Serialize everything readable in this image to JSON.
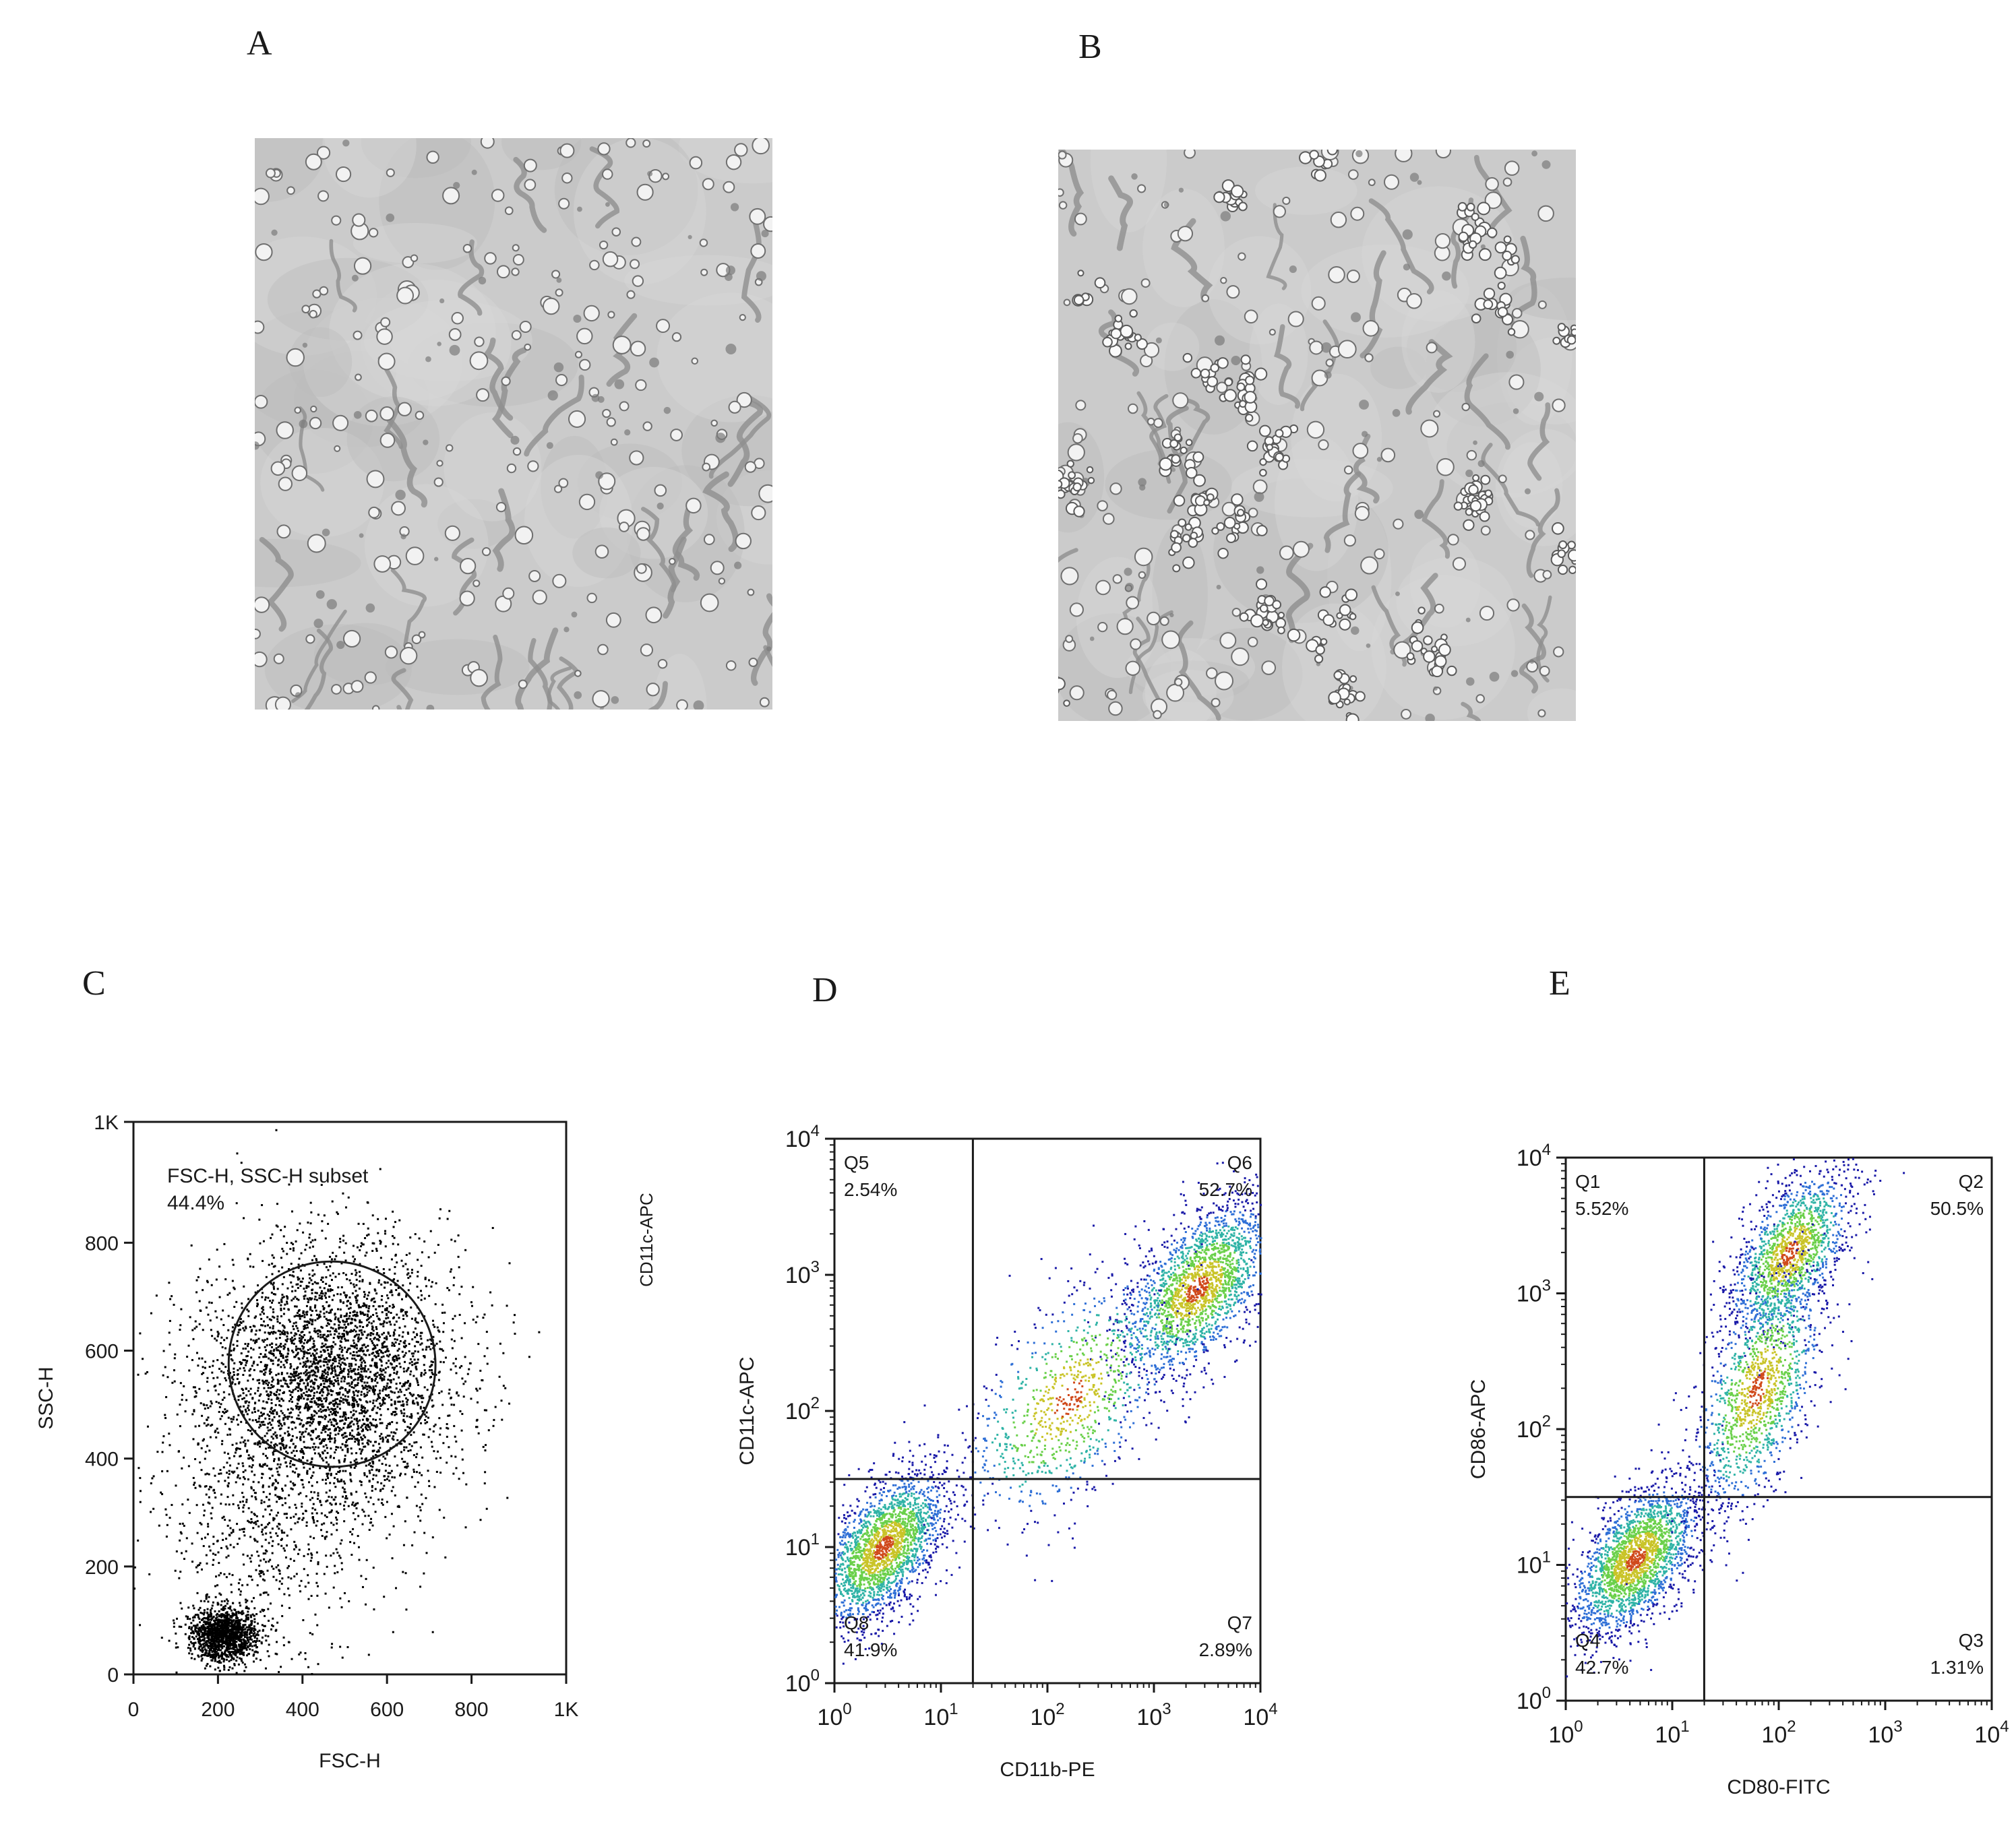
{
  "panels": {
    "A": {
      "letter": "A"
    },
    "B": {
      "letter": "B"
    },
    "C": {
      "letter": "C"
    },
    "D": {
      "letter": "D"
    },
    "E": {
      "letter": "E"
    }
  },
  "chart_data": [
    {
      "id": "C",
      "type": "scatter",
      "xlabel": "FSC-H",
      "ylabel": "SSC-H",
      "scale": "linear",
      "xlim": [
        0,
        1024
      ],
      "ylim": [
        0,
        1024
      ],
      "x_ticks": [
        "0",
        "200",
        "400",
        "600",
        "800",
        "1K"
      ],
      "x_tick_values": [
        0,
        200,
        400,
        600,
        800,
        1024
      ],
      "y_ticks": [
        "0",
        "200",
        "400",
        "600",
        "800",
        "1K"
      ],
      "y_tick_values": [
        0,
        200,
        400,
        600,
        800,
        1024
      ],
      "gate": {
        "type": "ellipse",
        "center": [
          470,
          575
        ],
        "rx": 245,
        "ry": 190
      },
      "gate_label": "FSC-H, SSC-H subset",
      "gate_value": "44.4%",
      "clusters": [
        {
          "center": [
            470,
            560
          ],
          "spread": [
            150,
            120
          ],
          "count": 3500
        },
        {
          "center": [
            215,
            75
          ],
          "spread": [
            40,
            25
          ],
          "count": 1400
        },
        {
          "center": [
            320,
            300
          ],
          "spread": [
            140,
            130
          ],
          "count": 800
        }
      ],
      "color": "#000000"
    },
    {
      "id": "D",
      "type": "scatter",
      "xlabel": "CD11b-PE",
      "ylabel": "CD11c-APC",
      "ylabel_outer": "CD11c-APC",
      "scale": "log",
      "xlim": [
        0,
        4
      ],
      "ylim": [
        0,
        4
      ],
      "x_ticks": [
        "10^0",
        "10^1",
        "10^2",
        "10^3",
        "10^4"
      ],
      "y_ticks": [
        "10^0",
        "10^1",
        "10^2",
        "10^3",
        "10^4"
      ],
      "quadrant_threshold": [
        1.3,
        1.5
      ],
      "quadrants": [
        {
          "name": "Q5",
          "value": "2.54%",
          "position": "top-left"
        },
        {
          "name": "Q6",
          "value": "52.7%",
          "position": "top-right"
        },
        {
          "name": "Q7",
          "value": "2.89%",
          "position": "bottom-right"
        },
        {
          "name": "Q8",
          "value": "41.9%",
          "position": "bottom-left"
        }
      ],
      "clusters": [
        {
          "center": [
            0.45,
            1.0
          ],
          "spread": [
            0.3,
            0.28
          ],
          "count": 2200
        },
        {
          "center": [
            3.4,
            2.9
          ],
          "spread": [
            0.35,
            0.32
          ],
          "count": 2000
        },
        {
          "center": [
            2.2,
            2.1
          ],
          "spread": [
            0.5,
            0.45
          ],
          "count": 900
        }
      ],
      "density_colors": [
        "#1a1aa8",
        "#2e6fd6",
        "#2fb3a6",
        "#6ad04a",
        "#c9c428",
        "#d04a1c"
      ]
    },
    {
      "id": "E",
      "type": "scatter",
      "xlabel": "CD80-FITC",
      "ylabel": "CD86-APC",
      "scale": "log",
      "xlim": [
        0,
        4
      ],
      "ylim": [
        0,
        4
      ],
      "x_ticks": [
        "10^0",
        "10^1",
        "10^2",
        "10^3",
        "10^4"
      ],
      "y_ticks": [
        "10^0",
        "10^1",
        "10^2",
        "10^3",
        "10^4"
      ],
      "quadrant_threshold": [
        1.3,
        1.5
      ],
      "quadrants": [
        {
          "name": "Q1",
          "value": "5.52%",
          "position": "top-left"
        },
        {
          "name": "Q2",
          "value": "50.5%",
          "position": "top-right"
        },
        {
          "name": "Q3",
          "value": "1.31%",
          "position": "bottom-right"
        },
        {
          "name": "Q4",
          "value": "42.7%",
          "position": "bottom-left"
        }
      ],
      "clusters": [
        {
          "center": [
            0.65,
            1.05
          ],
          "spread": [
            0.3,
            0.28
          ],
          "count": 2200
        },
        {
          "center": [
            2.1,
            3.3
          ],
          "spread": [
            0.28,
            0.3
          ],
          "count": 1500
        },
        {
          "center": [
            1.8,
            2.3
          ],
          "spread": [
            0.3,
            0.45
          ],
          "count": 1300
        }
      ],
      "density_colors": [
        "#1a1aa8",
        "#2e6fd6",
        "#2fb3a6",
        "#6ad04a",
        "#c9c428",
        "#d04a1c"
      ]
    }
  ]
}
